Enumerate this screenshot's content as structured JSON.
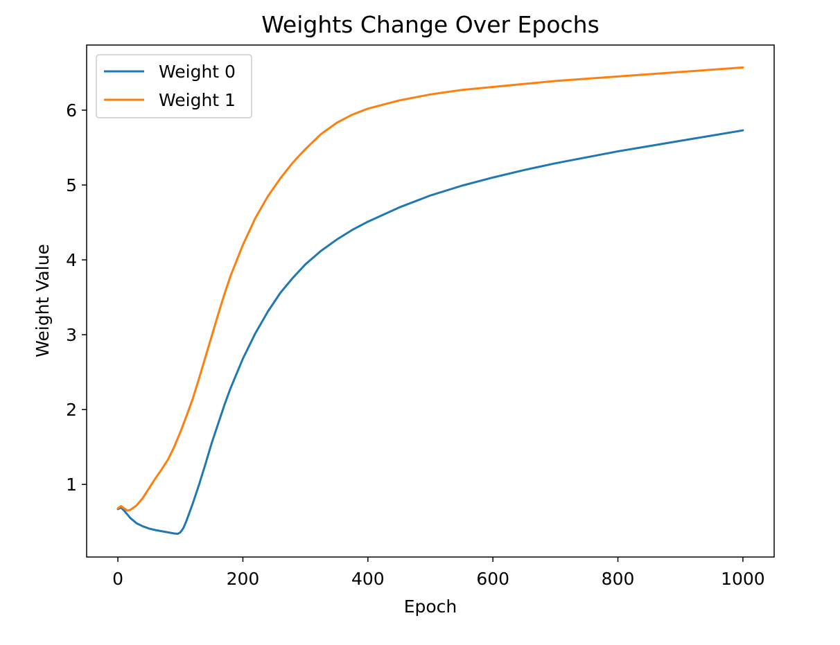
{
  "chart_data": {
    "type": "line",
    "title": "Weights Change Over Epochs",
    "xlabel": "Epoch",
    "ylabel": "Weight Value",
    "xlim": [
      -50,
      1050
    ],
    "ylim": [
      0.03,
      6.87
    ],
    "xticks": [
      0,
      200,
      400,
      600,
      800,
      1000
    ],
    "yticks": [
      1,
      2,
      3,
      4,
      5,
      6
    ],
    "grid": false,
    "legend": {
      "location": "upper left"
    },
    "series": [
      {
        "name": "Weight 0",
        "color": "#1f77b4",
        "points": [
          [
            0,
            0.67
          ],
          [
            5,
            0.69
          ],
          [
            10,
            0.65
          ],
          [
            15,
            0.6
          ],
          [
            20,
            0.55
          ],
          [
            30,
            0.48
          ],
          [
            40,
            0.44
          ],
          [
            50,
            0.41
          ],
          [
            60,
            0.39
          ],
          [
            70,
            0.375
          ],
          [
            80,
            0.36
          ],
          [
            90,
            0.345
          ],
          [
            96,
            0.34
          ],
          [
            100,
            0.36
          ],
          [
            105,
            0.42
          ],
          [
            110,
            0.52
          ],
          [
            120,
            0.75
          ],
          [
            130,
            1.0
          ],
          [
            140,
            1.27
          ],
          [
            150,
            1.55
          ],
          [
            160,
            1.8
          ],
          [
            170,
            2.05
          ],
          [
            180,
            2.28
          ],
          [
            200,
            2.68
          ],
          [
            220,
            3.02
          ],
          [
            240,
            3.31
          ],
          [
            260,
            3.56
          ],
          [
            280,
            3.76
          ],
          [
            300,
            3.94
          ],
          [
            325,
            4.12
          ],
          [
            350,
            4.27
          ],
          [
            375,
            4.4
          ],
          [
            400,
            4.51
          ],
          [
            450,
            4.7
          ],
          [
            500,
            4.86
          ],
          [
            550,
            4.99
          ],
          [
            600,
            5.1
          ],
          [
            650,
            5.2
          ],
          [
            700,
            5.29
          ],
          [
            750,
            5.37
          ],
          [
            800,
            5.45
          ],
          [
            850,
            5.52
          ],
          [
            900,
            5.59
          ],
          [
            950,
            5.66
          ],
          [
            1000,
            5.73
          ]
        ]
      },
      {
        "name": "Weight 1",
        "color": "#ff7f0e",
        "points": [
          [
            0,
            0.68
          ],
          [
            5,
            0.71
          ],
          [
            10,
            0.68
          ],
          [
            15,
            0.65
          ],
          [
            20,
            0.66
          ],
          [
            30,
            0.72
          ],
          [
            40,
            0.82
          ],
          [
            50,
            0.95
          ],
          [
            60,
            1.08
          ],
          [
            70,
            1.2
          ],
          [
            80,
            1.33
          ],
          [
            90,
            1.5
          ],
          [
            100,
            1.7
          ],
          [
            110,
            1.92
          ],
          [
            120,
            2.15
          ],
          [
            130,
            2.42
          ],
          [
            140,
            2.7
          ],
          [
            150,
            2.98
          ],
          [
            160,
            3.26
          ],
          [
            170,
            3.53
          ],
          [
            180,
            3.78
          ],
          [
            200,
            4.2
          ],
          [
            220,
            4.56
          ],
          [
            240,
            4.85
          ],
          [
            260,
            5.09
          ],
          [
            280,
            5.3
          ],
          [
            300,
            5.48
          ],
          [
            325,
            5.68
          ],
          [
            350,
            5.83
          ],
          [
            375,
            5.94
          ],
          [
            400,
            6.02
          ],
          [
            450,
            6.13
          ],
          [
            500,
            6.21
          ],
          [
            550,
            6.27
          ],
          [
            600,
            6.31
          ],
          [
            650,
            6.35
          ],
          [
            700,
            6.39
          ],
          [
            750,
            6.42
          ],
          [
            800,
            6.45
          ],
          [
            850,
            6.48
          ],
          [
            900,
            6.51
          ],
          [
            950,
            6.54
          ],
          [
            1000,
            6.57
          ]
        ]
      }
    ]
  }
}
